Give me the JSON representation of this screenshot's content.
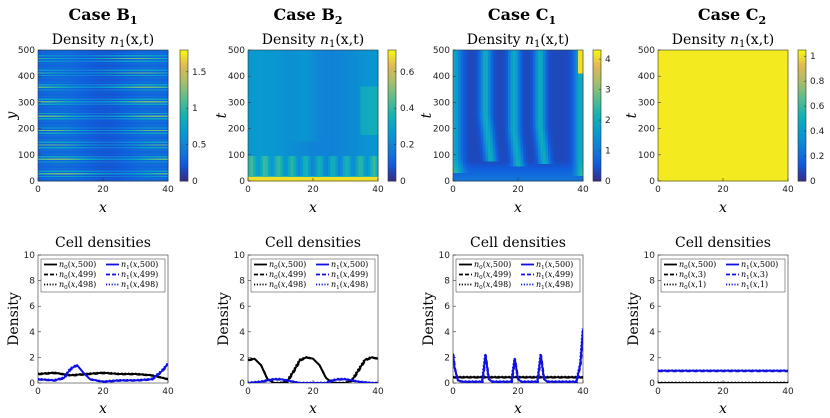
{
  "chart_data": [
    {
      "type": "heatmap",
      "case_title": "Case B",
      "case_sub": "1",
      "subtitle": "Density n1(x,t)",
      "xlabel": "x",
      "ylabel": "y",
      "xlim": [
        0,
        40
      ],
      "ylim": [
        0,
        500
      ],
      "xticks": [
        "0",
        "20",
        "40"
      ],
      "yticks": [
        "0",
        "100",
        "200",
        "300",
        "400",
        "500"
      ],
      "colorbar": {
        "ticks": [
          "0",
          "0.5",
          "1",
          "1.5"
        ],
        "max": 1.8
      },
      "pattern": "stripes"
    },
    {
      "type": "heatmap",
      "case_title": "Case B",
      "case_sub": "2",
      "subtitle": "Density n1(x,t)",
      "xlabel": "x",
      "ylabel": "t",
      "xlim": [
        0,
        40
      ],
      "ylim": [
        0,
        500
      ],
      "xticks": [
        "0",
        "20",
        "40"
      ],
      "yticks": [
        "0",
        "100",
        "200",
        "300",
        "400",
        "500"
      ],
      "colorbar": {
        "ticks": [
          "0",
          "0.2",
          "0.4",
          "0.6"
        ],
        "max": 0.72
      },
      "pattern": "b2"
    },
    {
      "type": "heatmap",
      "case_title": "Case C",
      "case_sub": "1",
      "subtitle": "Density n1(x,t)",
      "xlabel": "x",
      "ylabel": "t",
      "xlim": [
        0,
        40
      ],
      "ylim": [
        0,
        500
      ],
      "xticks": [
        "0",
        "20",
        "40"
      ],
      "yticks": [
        "0",
        "100",
        "200",
        "300",
        "400",
        "500"
      ],
      "colorbar": {
        "ticks": [
          "0",
          "1",
          "2",
          "3",
          "4"
        ],
        "max": 4.3
      },
      "pattern": "c1"
    },
    {
      "type": "heatmap",
      "case_title": "Case C",
      "case_sub": "2",
      "subtitle": "Density n1(x,t)",
      "xlabel": "x",
      "ylabel": "t",
      "xlim": [
        0,
        40
      ],
      "ylim": [
        0,
        500
      ],
      "xticks": [
        "0",
        "20",
        "40"
      ],
      "yticks": [
        "0",
        "100",
        "200",
        "300",
        "400",
        "500"
      ],
      "colorbar": {
        "ticks": [
          "0",
          "0.2",
          "0.4",
          "0.6",
          "0.8",
          "1"
        ],
        "max": 1.05
      },
      "pattern": "uniform"
    },
    {
      "type": "line",
      "title": "Cell densities",
      "xlabel": "x",
      "ylabel": "Density",
      "xlim": [
        0,
        40
      ],
      "ylim": [
        0,
        10
      ],
      "xticks": [
        "0",
        "20",
        "40"
      ],
      "yticks": [
        "0",
        "2",
        "4",
        "6",
        "8",
        "10"
      ],
      "legend": [
        "n0(x,500)",
        "n1(x,500)",
        "n0(x,499)",
        "n1(x,499)",
        "n0(x,498)",
        "n1(x,498)"
      ],
      "series": [
        {
          "name": "n0(x,500)",
          "x": [
            0,
            5,
            10,
            15,
            20,
            25,
            30,
            35,
            40
          ],
          "y": [
            0.7,
            0.8,
            0.6,
            0.7,
            0.8,
            0.7,
            0.7,
            0.6,
            0.3
          ]
        },
        {
          "name": "n1(x,500)",
          "x": [
            0,
            5,
            8,
            10,
            12,
            14,
            16,
            20,
            25,
            30,
            35,
            38,
            40
          ],
          "y": [
            0.3,
            0.2,
            0.4,
            1.1,
            1.4,
            0.8,
            0.3,
            0.1,
            0.2,
            0.2,
            0.3,
            0.9,
            1.5
          ]
        }
      ]
    },
    {
      "type": "line",
      "title": "Cell densities",
      "xlabel": "x",
      "ylabel": "Density",
      "xlim": [
        0,
        40
      ],
      "ylim": [
        0,
        10
      ],
      "xticks": [
        "0",
        "20",
        "40"
      ],
      "yticks": [
        "0",
        "2",
        "4",
        "6",
        "8",
        "10"
      ],
      "legend": [
        "n0(x,500)",
        "n1(x,500)",
        "n0(x,499)",
        "n1(x,499)",
        "n0(x,498)",
        "n1(x,498)"
      ],
      "series": [
        {
          "name": "n0(x,500)",
          "x": [
            0,
            2,
            4,
            6,
            8,
            10,
            12,
            14,
            16,
            18,
            20,
            22,
            24,
            26,
            28,
            30,
            32,
            34,
            36,
            38,
            40
          ],
          "y": [
            1.8,
            1.9,
            1.4,
            0.3,
            0.0,
            0.0,
            0.1,
            0.9,
            1.8,
            2.0,
            1.9,
            1.4,
            0.4,
            0.0,
            0.0,
            0.0,
            0.2,
            1.0,
            1.8,
            2.0,
            1.9
          ]
        },
        {
          "name": "n1(x,500)",
          "x": [
            0,
            4,
            6,
            8,
            10,
            12,
            14,
            16,
            20,
            24,
            26,
            28,
            30,
            32,
            34,
            38,
            40
          ],
          "y": [
            0.0,
            0.1,
            0.2,
            0.3,
            0.3,
            0.2,
            0.1,
            0.0,
            0.0,
            0.0,
            0.2,
            0.3,
            0.3,
            0.2,
            0.1,
            0.0,
            0.0
          ]
        }
      ]
    },
    {
      "type": "line",
      "title": "Cell densities",
      "xlabel": "x",
      "ylabel": "Density",
      "xlim": [
        0,
        40
      ],
      "ylim": [
        0,
        10
      ],
      "xticks": [
        "0",
        "20",
        "40"
      ],
      "yticks": [
        "0",
        "2",
        "4",
        "6",
        "8",
        "10"
      ],
      "legend": [
        "n0(x,500)",
        "n1(x,500)",
        "n0(x,499)",
        "n1(x,499)",
        "n0(x,498)",
        "n1(x,498)"
      ],
      "series": [
        {
          "name": "n0(x,500)",
          "x": [
            0,
            40
          ],
          "y": [
            0.45,
            0.45
          ]
        },
        {
          "name": "n1(x,500)",
          "x": [
            0,
            0.5,
            1.5,
            3,
            9,
            10,
            11,
            12,
            18,
            19,
            20,
            21,
            26,
            27,
            28,
            29,
            38,
            39.2,
            40
          ],
          "y": [
            2.3,
            1.2,
            0.2,
            0.1,
            0.1,
            2.2,
            0.3,
            0.1,
            0.1,
            1.9,
            0.3,
            0.1,
            0.1,
            2.2,
            0.3,
            0.1,
            0.1,
            1.5,
            4.2
          ]
        }
      ]
    },
    {
      "type": "line",
      "title": "Cell densities",
      "xlabel": "x",
      "ylabel": "Density",
      "xlim": [
        0,
        40
      ],
      "ylim": [
        0,
        10
      ],
      "xticks": [
        "0",
        "20",
        "40"
      ],
      "yticks": [
        "0",
        "2",
        "4",
        "6",
        "8",
        "10"
      ],
      "legend": [
        "n0(x,500)",
        "n1(x,500)",
        "n0(x,3)",
        "n1(x,3)",
        "n0(x,1)",
        "n1(x,1)"
      ],
      "series": [
        {
          "name": "n0(x,500)",
          "x": [
            0,
            40
          ],
          "y": [
            0.0,
            0.0
          ]
        },
        {
          "name": "n1(x,500)",
          "x": [
            0,
            40
          ],
          "y": [
            0.95,
            0.95
          ]
        }
      ]
    }
  ]
}
